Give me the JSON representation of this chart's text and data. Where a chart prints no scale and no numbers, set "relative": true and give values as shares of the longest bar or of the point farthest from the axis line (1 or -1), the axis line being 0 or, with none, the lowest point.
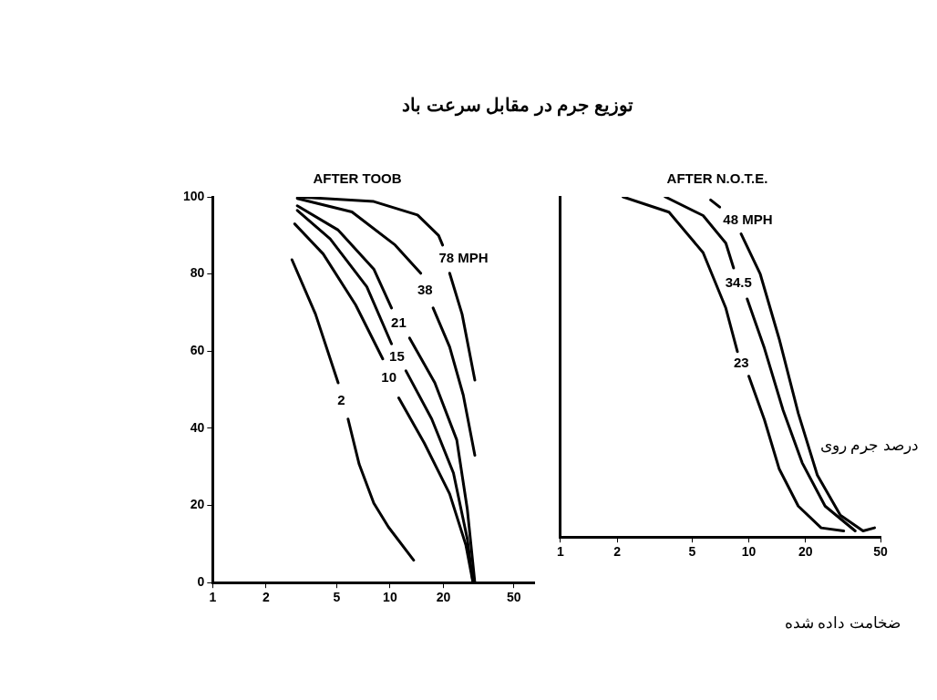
{
  "chart_data": [
    {
      "type": "line",
      "title": "AFTER TOOB",
      "xlim": [
        1,
        65
      ],
      "xticks": [
        1,
        2,
        5,
        10,
        20,
        50
      ],
      "ylim": [
        0,
        100
      ],
      "yticks": [
        0,
        20,
        40,
        60,
        80,
        100
      ],
      "log": "x",
      "grid": false,
      "legend": false,
      "series": [
        {
          "name": "78 MPH",
          "color": "#000000",
          "x": [
            3.0,
            8.1,
            14.3,
            18.8,
            19.8,
            20.5,
            21.7,
            25.5,
            30.1
          ],
          "values": [
            100,
            98.8,
            95.3,
            90,
            87.5,
            null,
            80.2,
            69.6,
            52.5
          ]
        },
        {
          "name": "38",
          "color": "#000000",
          "x": [
            3.0,
            6.1,
            10.7,
            14.9,
            16,
            17.5,
            21.7,
            25.9,
            30.1
          ],
          "values": [
            99.6,
            96.1,
            87.5,
            80.2,
            null,
            71.2,
            61.1,
            48.6,
            33
          ]
        },
        {
          "name": "21",
          "color": "#000000",
          "x": [
            3.0,
            5.1,
            8.1,
            10.2,
            11.5,
            12.9,
            17.9,
            23.8,
            27.3,
            30.1
          ],
          "values": [
            97.7,
            91.4,
            81.3,
            71.2,
            null,
            63.4,
            51.8,
            37,
            19,
            0
          ]
        },
        {
          "name": "15",
          "color": "#000000",
          "x": [
            3.0,
            4.6,
            7.4,
            10.2,
            11.2,
            12.3,
            17.2,
            22.8,
            27.3,
            29.4
          ],
          "values": [
            96.5,
            89.1,
            76.7,
            61.9,
            null,
            54.9,
            42.4,
            28.4,
            11.3,
            0
          ]
        },
        {
          "name": "10",
          "color": "#000000",
          "x": [
            2.9,
            4.2,
            6.4,
            9.1,
            10,
            11.2,
            15.6,
            21.7,
            26.8,
            29.4
          ],
          "values": [
            93,
            85.2,
            72,
            58,
            null,
            47.9,
            36.2,
            23,
            9.7,
            0
          ]
        },
        {
          "name": "2",
          "color": "#000000",
          "x": [
            2.8,
            3.8,
            5.1,
            5.5,
            5.8,
            6.7,
            8.1,
            9.8,
            13.6
          ],
          "values": [
            83.7,
            69.6,
            51.8,
            null,
            42.4,
            30.7,
            20.6,
            14.4,
            5.8
          ]
        }
      ]
    },
    {
      "type": "line",
      "title": "AFTER N.O.T.E.",
      "relative": true,
      "xlim": [
        1,
        50
      ],
      "xticks": [
        1,
        2,
        5,
        10,
        20,
        50
      ],
      "log": "x",
      "grid": false,
      "legend": false,
      "series": [
        {
          "name": "23",
          "color": "#000000",
          "x": [
            2.15,
            3.77,
            5.72,
            7.55,
            8.7,
            9.3,
            10,
            12.1,
            14.5,
            18.3,
            24.2,
            31.9
          ],
          "values": [
            1,
            0.955,
            0.836,
            0.673,
            0.545,
            null,
            0.473,
            0.345,
            0.2,
            0.091,
            0.027,
            0.018
          ]
        },
        {
          "name": "34.5",
          "color": "#000000",
          "x": [
            3.6,
            5.72,
            7.55,
            8.3,
            9,
            9.8,
            12.1,
            15.2,
            19.2,
            25.4,
            36.7
          ],
          "values": [
            1,
            0.945,
            0.864,
            0.791,
            null,
            0.7,
            0.555,
            0.373,
            0.218,
            0.091,
            0.018
          ]
        },
        {
          "name": "48 MPH",
          "color": "#000000",
          "x": [
            6.27,
            7.0,
            8.0,
            9.1,
            11.5,
            14.5,
            18.3,
            23.1,
            30.6,
            40.4,
            46.5
          ],
          "values": [
            0.991,
            0.97,
            null,
            0.891,
            0.773,
            0.582,
            0.364,
            0.182,
            0.064,
            0.018,
            0.027
          ]
        }
      ],
      "annotations": [
        "توزیع جرم در مقابل سرعت باد",
        "درصد جرم روی",
        "ضخامت داده شده"
      ]
    }
  ]
}
